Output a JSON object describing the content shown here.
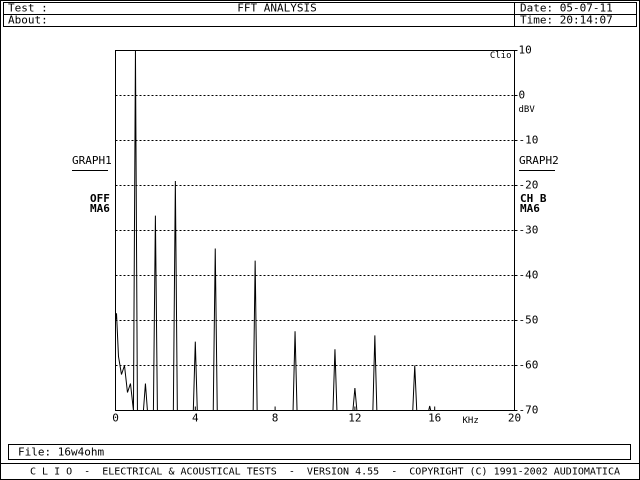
{
  "header": {
    "test": "Test :",
    "title": "FFT ANALYSIS",
    "date": "Date: 05-07-11",
    "about": "About:",
    "time": "Time: 20:14:07"
  },
  "side": {
    "left_graph": "GRAPH1",
    "left_state": "OFF",
    "left_avg": "MA6",
    "right_graph": "GRAPH2",
    "right_channel": "CH B",
    "right_avg": "MA6"
  },
  "chart_data": {
    "type": "line",
    "brand": "Clio",
    "y_label": "dBV",
    "x_label": "KHz",
    "color": "#000000",
    "x": [
      0,
      0.05,
      0.15,
      0.3,
      0.45,
      0.6,
      0.75,
      0.9,
      1.0,
      1.1,
      1.4,
      1.5,
      1.6,
      1.9,
      2.0,
      2.1,
      2.9,
      3.0,
      3.1,
      3.9,
      4.0,
      4.1,
      4.9,
      5.0,
      5.1,
      6.9,
      7.0,
      7.1,
      8.9,
      9.0,
      9.1,
      10.9,
      11.0,
      11.1,
      11.9,
      12.0,
      12.1,
      12.9,
      13.0,
      13.1,
      14.9,
      15.0,
      15.1,
      15.7,
      15.75,
      15.8,
      20
    ],
    "values": [
      -50,
      -48.4,
      -58,
      -62,
      -60,
      -66,
      -64,
      -70,
      10,
      -70,
      -70,
      -64,
      -70,
      -70,
      -26.7,
      -70,
      -70,
      -19,
      -70,
      -70,
      -54.7,
      -70,
      -70,
      -34,
      -70,
      -70,
      -36.7,
      -70,
      -70,
      -52.4,
      -70,
      -70,
      -56.4,
      -70,
      -70,
      -65,
      -70,
      -70,
      -53.3,
      -70,
      -70,
      -60,
      -70,
      -70,
      -69,
      -70,
      -70
    ],
    "xlim": [
      0,
      20
    ],
    "xticks": [
      0,
      4,
      8,
      12,
      16,
      20
    ],
    "ylim": [
      -70,
      10
    ],
    "yticks": [
      10,
      0,
      -10,
      -20,
      -30,
      -40,
      -50,
      -60,
      -70
    ],
    "grid": true
  },
  "footer": {
    "file": "File: 16w4ohm",
    "status": "C L I O  -  ELECTRICAL & ACOUSTICAL TESTS  -  VERSION 4.55  -  COPYRIGHT (C) 1991-2002 AUDIOMATICA"
  }
}
